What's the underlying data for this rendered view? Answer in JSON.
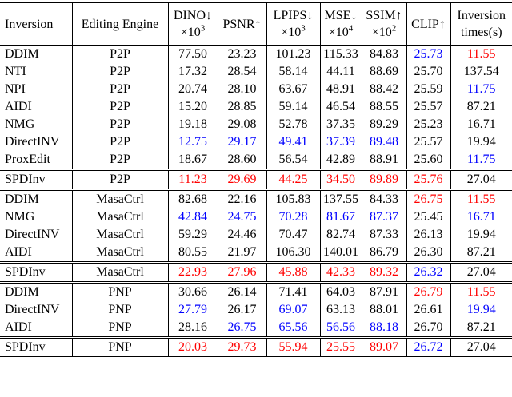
{
  "header": [
    {
      "line1": "Inversion"
    },
    {
      "line1": "Editing Engine"
    },
    {
      "line1": "DINO↓",
      "line2": "×10",
      "exp": "3"
    },
    {
      "line1": "PSNR↑"
    },
    {
      "line1": "LPIPS↓",
      "line2": "×10",
      "exp": "3"
    },
    {
      "line1": "MSE↓",
      "line2": "×10",
      "exp": "4"
    },
    {
      "line1": "SSIM↑",
      "line2": "×10",
      "exp": "2"
    },
    {
      "line1": "CLIP↑"
    },
    {
      "line1": "Inversion",
      "line2": "times(s)"
    }
  ],
  "sections": [
    {
      "rows": [
        [
          "DDIM",
          "P2P",
          "77.50",
          "23.23",
          "101.23",
          "115.33",
          "84.83",
          {
            "text": "25.73",
            "color": "blue"
          },
          {
            "text": "11.55",
            "color": "red"
          }
        ],
        [
          "NTI",
          "P2P",
          "17.32",
          "28.54",
          "58.14",
          "44.11",
          "88.69",
          "25.70",
          "137.54"
        ],
        [
          "NPI",
          "P2P",
          "20.74",
          "28.10",
          "63.67",
          "48.91",
          "88.42",
          "25.59",
          {
            "text": "11.75",
            "color": "blue"
          }
        ],
        [
          "AIDI",
          "P2P",
          "15.20",
          "28.85",
          "59.14",
          "46.54",
          "88.55",
          "25.57",
          "87.21"
        ],
        [
          "NMG",
          "P2P",
          "19.18",
          "29.08",
          "52.78",
          "37.35",
          "89.29",
          "25.23",
          "16.71"
        ],
        [
          "DirectINV",
          "P2P",
          {
            "text": "12.75",
            "color": "blue"
          },
          {
            "text": "29.17",
            "color": "blue"
          },
          {
            "text": "49.41",
            "color": "blue"
          },
          {
            "text": "37.39",
            "color": "blue"
          },
          {
            "text": "89.48",
            "color": "blue"
          },
          "25.57",
          "19.94"
        ],
        [
          "ProxEdit",
          "P2P",
          "18.67",
          "28.60",
          "56.54",
          "42.89",
          "88.91",
          "25.60",
          {
            "text": "11.75",
            "color": "blue"
          }
        ]
      ],
      "ours": [
        "SPDInv",
        "P2P",
        {
          "text": "11.23",
          "color": "red"
        },
        {
          "text": "29.69",
          "color": "red"
        },
        {
          "text": "44.25",
          "color": "red"
        },
        {
          "text": "34.50",
          "color": "red"
        },
        {
          "text": "89.89",
          "color": "red"
        },
        {
          "text": "25.76",
          "color": "red"
        },
        "27.04"
      ]
    },
    {
      "rows": [
        [
          "DDIM",
          "MasaCtrl",
          "82.68",
          "22.16",
          "105.83",
          "137.55",
          "84.33",
          {
            "text": "26.75",
            "color": "red"
          },
          {
            "text": "11.55",
            "color": "red"
          }
        ],
        [
          "NMG",
          "MasaCtrl",
          {
            "text": "42.84",
            "color": "blue"
          },
          {
            "text": "24.75",
            "color": "blue"
          },
          {
            "text": "70.28",
            "color": "blue"
          },
          {
            "text": "81.67",
            "color": "blue"
          },
          {
            "text": "87.37",
            "color": "blue"
          },
          "25.45",
          {
            "text": "16.71",
            "color": "blue"
          }
        ],
        [
          "DirectINV",
          "MasaCtrl",
          "59.29",
          "24.46",
          "70.47",
          "82.74",
          "87.33",
          "26.13",
          "19.94"
        ],
        [
          "AIDI",
          "MasaCtrl",
          "80.55",
          "21.97",
          "106.30",
          "140.01",
          "86.79",
          "26.30",
          "87.21"
        ]
      ],
      "ours": [
        "SPDInv",
        "MasaCtrl",
        {
          "text": "22.93",
          "color": "red"
        },
        {
          "text": "27.96",
          "color": "red"
        },
        {
          "text": "45.88",
          "color": "red"
        },
        {
          "text": "42.33",
          "color": "red"
        },
        {
          "text": "89.32",
          "color": "red"
        },
        {
          "text": "26.32",
          "color": "blue"
        },
        "27.04"
      ]
    },
    {
      "rows": [
        [
          "DDIM",
          "PNP",
          "30.66",
          "26.14",
          "71.41",
          "64.03",
          "87.91",
          {
            "text": "26.79",
            "color": "red"
          },
          {
            "text": "11.55",
            "color": "red"
          }
        ],
        [
          "DirectINV",
          "PNP",
          {
            "text": "27.79",
            "color": "blue"
          },
          "26.17",
          {
            "text": "69.07",
            "color": "blue"
          },
          "63.13",
          "88.01",
          "26.61",
          {
            "text": "19.94",
            "color": "blue"
          }
        ],
        [
          "AIDI",
          "PNP",
          "28.16",
          {
            "text": "26.75",
            "color": "blue"
          },
          {
            "text": "65.56",
            "color": "blue"
          },
          {
            "text": "56.56",
            "color": "blue"
          },
          {
            "text": "88.18",
            "color": "blue"
          },
          "26.70",
          "87.21"
        ]
      ],
      "ours": [
        "SPDInv",
        "PNP",
        {
          "text": "20.03",
          "color": "red"
        },
        {
          "text": "29.73",
          "color": "red"
        },
        {
          "text": "55.94",
          "color": "red"
        },
        {
          "text": "25.55",
          "color": "red"
        },
        {
          "text": "89.07",
          "color": "red"
        },
        {
          "text": "26.72",
          "color": "blue"
        },
        "27.04"
      ]
    }
  ]
}
